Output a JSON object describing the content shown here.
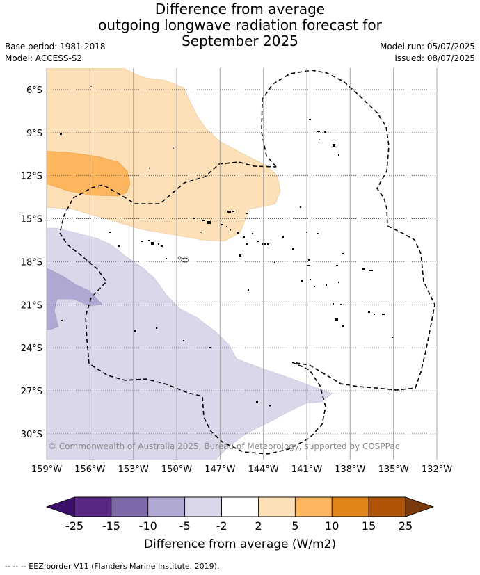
{
  "title_lines": [
    "Difference from average",
    "outgoing longwave radiation forecast for",
    "September 2025"
  ],
  "meta_left": [
    "Base period: 1981-2018",
    "Model: ACCESS-S2"
  ],
  "meta_right": [
    "Model run: 05/07/2025",
    "Issued: 08/07/2025"
  ],
  "copyright": "© Commonwealth of Australia 2025, Bureau of Meteorology, supported by COSPPac",
  "map": {
    "lon_range": [
      -159,
      -132
    ],
    "lat_range": [
      -31.8,
      -4.5
    ],
    "lon_ticks": [
      {
        "value": -159,
        "label": "159°W"
      },
      {
        "value": -156,
        "label": "156°W"
      },
      {
        "value": -153,
        "label": "153°W"
      },
      {
        "value": -150,
        "label": "150°W"
      },
      {
        "value": -147,
        "label": "147°W"
      },
      {
        "value": -144,
        "label": "144°W"
      },
      {
        "value": -141,
        "label": "141°W"
      },
      {
        "value": -138,
        "label": "138°W"
      },
      {
        "value": -135,
        "label": "135°W"
      },
      {
        "value": -132,
        "label": "132°W"
      }
    ],
    "lat_ticks": [
      {
        "value": -6,
        "label": "6°S"
      },
      {
        "value": -9,
        "label": "9°S"
      },
      {
        "value": -12,
        "label": "12°S"
      },
      {
        "value": -15,
        "label": "15°S"
      },
      {
        "value": -18,
        "label": "18°S"
      },
      {
        "value": -21,
        "label": "21°S"
      },
      {
        "value": -24,
        "label": "24°S"
      },
      {
        "value": -27,
        "label": "27°S"
      },
      {
        "value": -30,
        "label": "30°S"
      }
    ]
  },
  "colorbar": {
    "bins": [
      {
        "color": "#5a2685"
      },
      {
        "color": "#7e6aaa"
      },
      {
        "color": "#b0a7d2"
      },
      {
        "color": "#d8d8ea"
      },
      {
        "color": "#ffffff"
      },
      {
        "color": "#fde0b8"
      },
      {
        "color": "#fdb55e"
      },
      {
        "color": "#e38419"
      },
      {
        "color": "#b25405"
      }
    ],
    "low_color": "#3b0f6b",
    "high_color": "#7b3a0c",
    "tick_labels": [
      "-25",
      "-15",
      "-10",
      "-5",
      "-2",
      "2",
      "5",
      "10",
      "15",
      "25"
    ],
    "label": "Difference from average (W/m2)"
  },
  "footer": "--  --  -- EEZ border V11 (Flanders Marine Institute, 2019).",
  "colors": {
    "positive_light": "#fde0b8",
    "positive_medium": "#fdb55e",
    "negative_light": "#d8d8ea",
    "negative_medium": "#b0a7d2"
  }
}
